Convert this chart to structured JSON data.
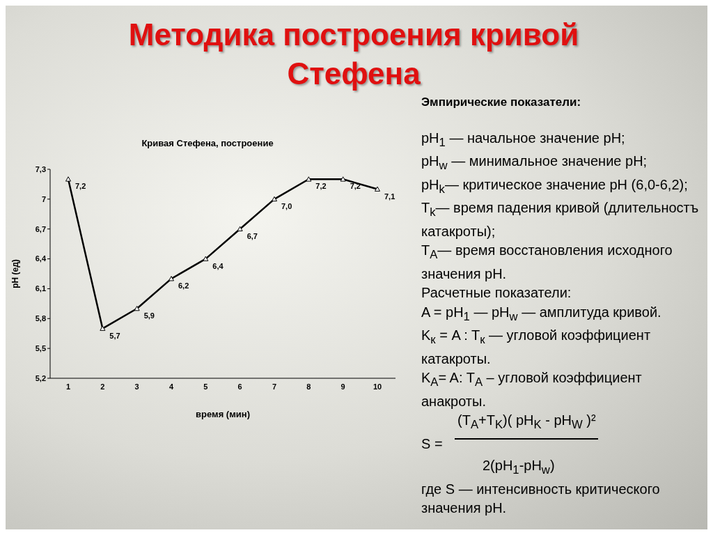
{
  "chart_data": {
    "type": "line",
    "title": "Методика построения кривой Стефена",
    "subtitle": "Кривая Стефена, построение",
    "xlabel": "время (мин)",
    "ylabel": "pH (ед)",
    "categories": [
      "1",
      "2",
      "3",
      "4",
      "5",
      "6",
      "7",
      "8",
      "9",
      "10"
    ],
    "series": [
      {
        "color": "#000000",
        "values": [
          7.2,
          5.7,
          5.9,
          6.2,
          6.4,
          6.7,
          7.0,
          7.2,
          7.2,
          7.1
        ],
        "value_labels": [
          "7,2",
          "5,7",
          "5,9",
          "6,2",
          "6,4",
          "6,7",
          "7,0",
          "7,2",
          "7,2",
          "7,1"
        ]
      }
    ],
    "ylim": [
      5.2,
      7.3
    ],
    "yticks": [
      {
        "value": 5.2,
        "label": "5,2"
      },
      {
        "value": 5.5,
        "label": "5,5"
      },
      {
        "value": 5.8,
        "label": "5,8"
      },
      {
        "value": 6.1,
        "label": "6,1"
      },
      {
        "value": 6.4,
        "label": "6,4"
      },
      {
        "value": 6.7,
        "label": "6,7"
      },
      7,
      {
        "value": 7.3,
        "label": "7,3"
      }
    ],
    "marker": "triangle",
    "grid": false,
    "legend": false,
    "annotations": [
      "Эмпирические показатели:",
      "pH$_{1}$   — начальное значение pH;",
      "pH$_{w}$ — минимальное значение pH;",
      "pH$_{k}$— критическое значение pH (6,0-6,2);",
      "T$_{k}$— время падения кривой (длительностъ катакроты);",
      "T$_{A}$— время восстановления исходного значения pH.",
      "Расчетные показатели:",
      "A = pH$_{1}$ — pH$_{w}$ — амплитуда кривой.",
      "K$_{к}$ = A : T$_{к}$ — угловой коэффициент катакроты.",
      "K$_{A}$= A: T$_{A}$ – угловой коэффициент анакроты.",
      "(T$_{A}$+T$_{K}$)( pH$_{K}$ - pH$_{W}$ )²",
      "S =",
      "2(pH$_{1}$-pH$_{w}$)",
      "где S — интенсивность критического значения pH."
    ]
  }
}
